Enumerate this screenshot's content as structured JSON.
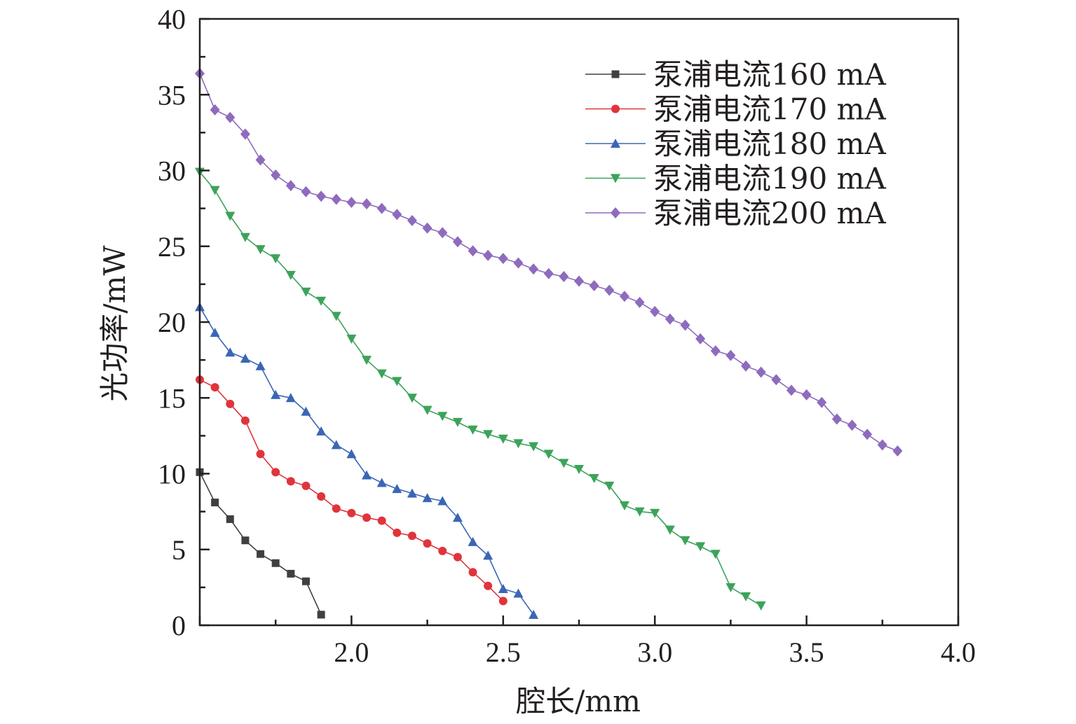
{
  "chart_data": {
    "type": "line",
    "xlabel": "腔长/mm",
    "ylabel": "光功率/mW",
    "xlim": [
      1.5,
      4.0
    ],
    "ylim": [
      0,
      40
    ],
    "x_ticks": [
      "2.0",
      "2.5",
      "3.0",
      "3.5",
      "4.0"
    ],
    "y_ticks": [
      "0",
      "5",
      "10",
      "15",
      "20",
      "25",
      "30",
      "35",
      "40"
    ],
    "grid": false,
    "legend_position": "top-right",
    "series": [
      {
        "name": "泵浦电流160 mA",
        "color": "#404040",
        "marker": "square",
        "x": [
          1.5,
          1.55,
          1.6,
          1.65,
          1.7,
          1.75,
          1.8,
          1.85,
          1.9
        ],
        "y": [
          10.1,
          8.1,
          7.0,
          5.6,
          4.7,
          4.1,
          3.4,
          2.9,
          0.7
        ]
      },
      {
        "name": "泵浦电流170 mA",
        "color": "#e0343c",
        "marker": "circle",
        "x": [
          1.5,
          1.55,
          1.6,
          1.65,
          1.7,
          1.75,
          1.8,
          1.85,
          1.9,
          1.95,
          2.0,
          2.05,
          2.1,
          2.15,
          2.2,
          2.25,
          2.3,
          2.35,
          2.4,
          2.45,
          2.5
        ],
        "y": [
          16.2,
          15.7,
          14.6,
          13.5,
          11.3,
          10.1,
          9.5,
          9.2,
          8.5,
          7.7,
          7.4,
          7.1,
          6.9,
          6.1,
          5.9,
          5.4,
          4.9,
          4.5,
          3.5,
          2.6,
          1.6
        ]
      },
      {
        "name": "泵浦电流180 mA",
        "color": "#3b66b5",
        "marker": "triangle-up",
        "x": [
          1.5,
          1.55,
          1.6,
          1.65,
          1.7,
          1.75,
          1.8,
          1.85,
          1.9,
          1.95,
          2.0,
          2.05,
          2.1,
          2.15,
          2.2,
          2.25,
          2.3,
          2.35,
          2.4,
          2.45,
          2.5,
          2.55,
          2.6
        ],
        "y": [
          21.0,
          19.3,
          18.0,
          17.6,
          17.1,
          15.2,
          15.0,
          14.1,
          12.8,
          11.9,
          11.3,
          9.9,
          9.4,
          9.0,
          8.7,
          8.4,
          8.2,
          7.1,
          5.5,
          4.6,
          2.4,
          2.1,
          0.7
        ]
      },
      {
        "name": "泵浦电流190 mA",
        "color": "#3ca35a",
        "marker": "triangle-down",
        "x": [
          1.5,
          1.55,
          1.6,
          1.65,
          1.7,
          1.75,
          1.8,
          1.85,
          1.9,
          1.95,
          2.0,
          2.05,
          2.1,
          2.15,
          2.2,
          2.25,
          2.3,
          2.35,
          2.4,
          2.45,
          2.5,
          2.55,
          2.6,
          2.65,
          2.7,
          2.75,
          2.8,
          2.85,
          2.9,
          2.95,
          3.0,
          3.05,
          3.1,
          3.15,
          3.2,
          3.25,
          3.3,
          3.35
        ],
        "y": [
          29.9,
          28.7,
          27.0,
          25.6,
          24.8,
          24.2,
          23.1,
          22.0,
          21.4,
          20.4,
          18.9,
          17.5,
          16.6,
          16.1,
          15.0,
          14.2,
          13.8,
          13.4,
          12.9,
          12.6,
          12.3,
          12.0,
          11.8,
          11.3,
          10.7,
          10.3,
          9.7,
          9.2,
          7.9,
          7.5,
          7.4,
          6.3,
          5.6,
          5.2,
          4.7,
          2.5,
          1.9,
          1.3
        ]
      },
      {
        "name": "泵浦电流200 mA",
        "color": "#8e6bbd",
        "marker": "diamond",
        "x": [
          1.5,
          1.55,
          1.6,
          1.65,
          1.7,
          1.75,
          1.8,
          1.85,
          1.9,
          1.95,
          2.0,
          2.05,
          2.1,
          2.15,
          2.2,
          2.25,
          2.3,
          2.35,
          2.4,
          2.45,
          2.5,
          2.55,
          2.6,
          2.65,
          2.7,
          2.75,
          2.8,
          2.85,
          2.9,
          2.95,
          3.0,
          3.05,
          3.1,
          3.15,
          3.2,
          3.25,
          3.3,
          3.35,
          3.4,
          3.45,
          3.5,
          3.55,
          3.6,
          3.65,
          3.7,
          3.75,
          3.8
        ],
        "y": [
          36.4,
          34.0,
          33.5,
          32.4,
          30.7,
          29.7,
          29.0,
          28.6,
          28.3,
          28.1,
          27.9,
          27.8,
          27.5,
          27.1,
          26.7,
          26.2,
          25.9,
          25.3,
          24.7,
          24.4,
          24.2,
          23.9,
          23.5,
          23.2,
          23.0,
          22.7,
          22.4,
          22.1,
          21.7,
          21.3,
          20.7,
          20.2,
          19.8,
          18.9,
          18.1,
          17.8,
          17.1,
          16.7,
          16.2,
          15.5,
          15.2,
          14.7,
          13.6,
          13.2,
          12.6,
          11.9,
          11.5
        ]
      }
    ]
  }
}
